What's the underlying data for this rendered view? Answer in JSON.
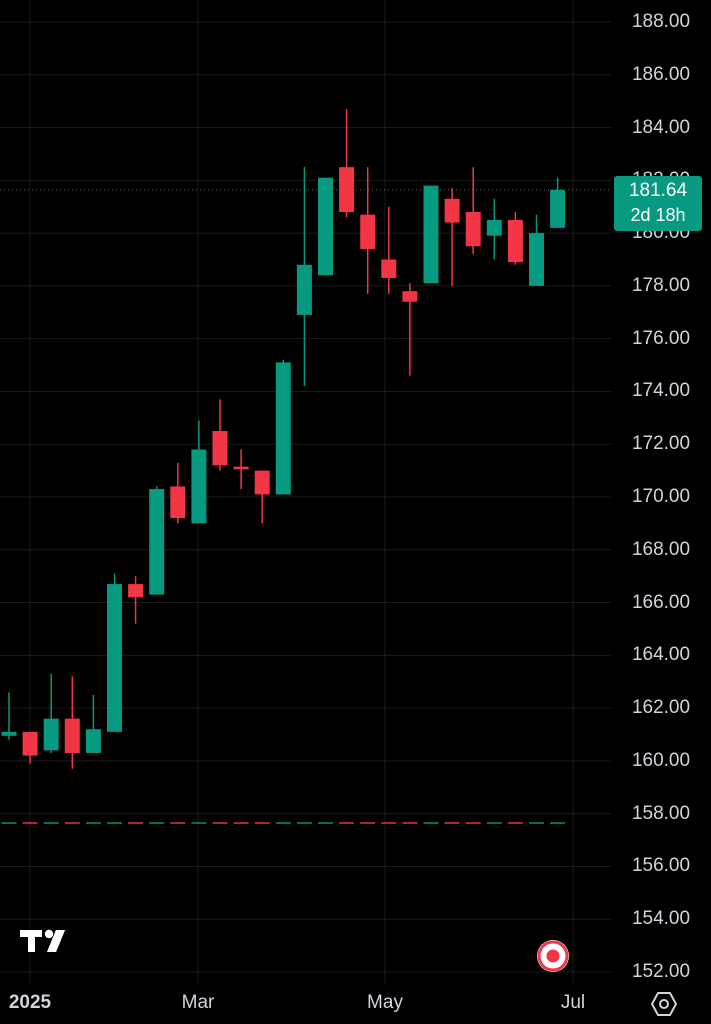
{
  "chart_data": {
    "type": "candlestick",
    "timeframe": "weekly",
    "ylim": [
      152,
      188
    ],
    "y_ticks": [
      "152.00",
      "154.00",
      "156.00",
      "158.00",
      "160.00",
      "162.00",
      "164.00",
      "166.00",
      "168.00",
      "170.00",
      "172.00",
      "174.00",
      "176.00",
      "178.00",
      "180.00",
      "182.00",
      "184.00",
      "186.00",
      "188.00"
    ],
    "x_ticks": [
      "2025",
      "Mar",
      "May",
      "Jul"
    ],
    "last_price": "181.64",
    "countdown": "2d 18h",
    "grid": true,
    "candles": [
      {
        "o": 160.95,
        "h": 162.6,
        "l": 160.8,
        "c": 161.1
      },
      {
        "o": 161.1,
        "h": 161.1,
        "l": 159.9,
        "c": 160.2
      },
      {
        "o": 160.4,
        "h": 163.3,
        "l": 160.3,
        "c": 161.6
      },
      {
        "o": 161.6,
        "h": 163.2,
        "l": 159.7,
        "c": 160.3
      },
      {
        "o": 160.3,
        "h": 162.5,
        "l": 160.3,
        "c": 161.2
      },
      {
        "o": 161.1,
        "h": 167.1,
        "l": 161.1,
        "c": 166.7
      },
      {
        "o": 166.7,
        "h": 167.0,
        "l": 165.2,
        "c": 166.2
      },
      {
        "o": 166.3,
        "h": 170.4,
        "l": 166.3,
        "c": 170.3
      },
      {
        "o": 170.4,
        "h": 171.3,
        "l": 169.0,
        "c": 169.2
      },
      {
        "o": 169.0,
        "h": 172.9,
        "l": 169.0,
        "c": 171.8
      },
      {
        "o": 172.5,
        "h": 173.7,
        "l": 171.0,
        "c": 171.2
      },
      {
        "o": 171.15,
        "h": 171.8,
        "l": 170.3,
        "c": 171.05
      },
      {
        "o": 171.0,
        "h": 171.0,
        "l": 169.0,
        "c": 170.1
      },
      {
        "o": 170.1,
        "h": 175.2,
        "l": 170.1,
        "c": 175.1
      },
      {
        "o": 176.9,
        "h": 182.5,
        "l": 174.2,
        "c": 178.8
      },
      {
        "o": 178.4,
        "h": 182.1,
        "l": 178.4,
        "c": 182.1
      },
      {
        "o": 182.5,
        "h": 184.7,
        "l": 180.6,
        "c": 180.8
      },
      {
        "o": 180.7,
        "h": 182.5,
        "l": 177.7,
        "c": 179.4
      },
      {
        "o": 179.0,
        "h": 181.0,
        "l": 177.7,
        "c": 178.3
      },
      {
        "o": 177.8,
        "h": 178.1,
        "l": 174.6,
        "c": 177.4
      },
      {
        "o": 178.1,
        "h": 181.8,
        "l": 178.1,
        "c": 181.8
      },
      {
        "o": 181.3,
        "h": 181.7,
        "l": 178.0,
        "c": 180.4
      },
      {
        "o": 180.8,
        "h": 182.5,
        "l": 179.2,
        "c": 179.5
      },
      {
        "o": 179.9,
        "h": 181.3,
        "l": 179.0,
        "c": 180.5
      },
      {
        "o": 180.5,
        "h": 180.8,
        "l": 178.8,
        "c": 178.9
      },
      {
        "o": 178.0,
        "h": 180.7,
        "l": 178.0,
        "c": 180.0
      },
      {
        "o": 180.2,
        "h": 182.1,
        "l": 180.2,
        "c": 181.64
      }
    ]
  },
  "colors": {
    "background": "#000000",
    "grid": "#1c1c1c",
    "up": "#089981",
    "down": "#f23645",
    "text": "#d1d4dc",
    "last_price_line": "#6b6b6b"
  },
  "icons": {
    "logo": "tradingview-logo-icon",
    "record": "record-icon",
    "settings": "settings-hexagon-icon"
  }
}
